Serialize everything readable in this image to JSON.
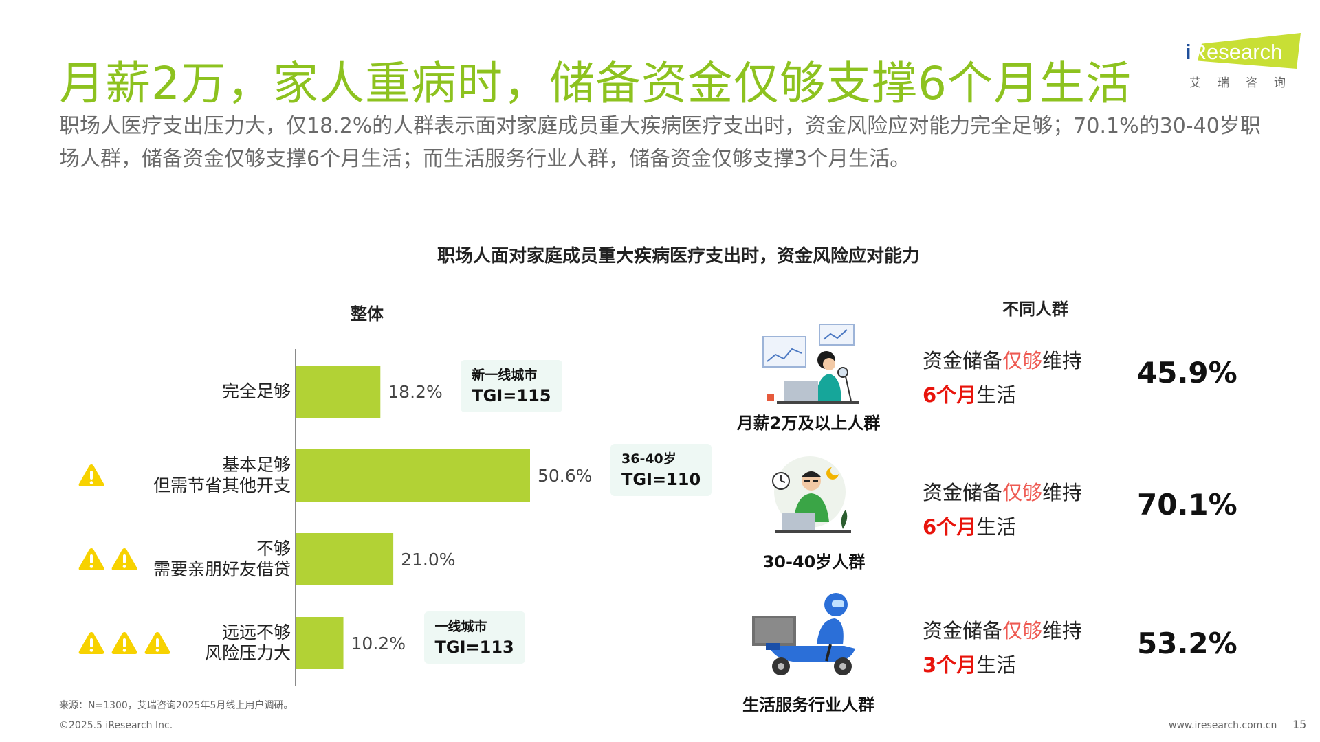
{
  "title": "月薪2万，家人重病时，储备资金仅够支撑6个月生活",
  "subtitle": "职场人医疗支出压力大，仅18.2%的人群表示面对家庭成员重大疾病医疗支出时，资金风险应对能力完全足够；70.1%的30-40岁职场人群，储备资金仅够支撑6个月生活；而生活服务行业人群，储备资金仅够支撑3个月生活。",
  "logo": {
    "text": "iResearch",
    "cn": "艾瑞咨询"
  },
  "colors": {
    "accent": "#8dc21f",
    "bar": "#b2d235",
    "highlight": "#ee5a52",
    "red": "#e8140c",
    "warning": "#f7d200",
    "tgi_bg": "#eef8f4"
  },
  "chart_data": {
    "type": "bar",
    "orientation": "horizontal",
    "title": "职场人面对家庭成员重大疾病医疗支出时，资金风险应对能力",
    "panel_title": "整体",
    "categories": [
      "完全足够",
      "基本足够\n但需节省其他开支",
      "不够\n需要亲朋好友借贷",
      "远远不够\n风险压力大"
    ],
    "category_lines": [
      [
        "完全足够"
      ],
      [
        "基本足够",
        "但需节省其他开支"
      ],
      [
        "不够",
        "需要亲朋好友借贷"
      ],
      [
        "远远不够",
        "风险压力大"
      ]
    ],
    "values": [
      18.2,
      50.6,
      21.0,
      10.2
    ],
    "value_labels": [
      "18.2%",
      "50.6%",
      "21.0%",
      "10.2%"
    ],
    "warning_counts": [
      0,
      1,
      2,
      3
    ],
    "xlim": [
      0,
      55
    ],
    "tgi_callouts": [
      {
        "category_index": 0,
        "group": "新一线城市",
        "tgi": "TGI=115"
      },
      {
        "category_index": 1,
        "group": "36-40岁",
        "tgi": "TGI=110"
      },
      {
        "category_index": 3,
        "group": "一线城市",
        "tgi": "TGI=113"
      }
    ]
  },
  "groups_header": "不同人群",
  "groups": [
    {
      "name": "月薪2万及以上人群",
      "icon": "office-worker-icon",
      "desc_prefix": "资金储备",
      "desc_hl": "仅够",
      "desc_suffix": "维持",
      "months": "6个月",
      "after": "生活",
      "percent": "45.9%"
    },
    {
      "name": "30-40岁人群",
      "icon": "busy-worker-icon",
      "desc_prefix": "资金储备",
      "desc_hl": "仅够",
      "desc_suffix": "维持",
      "months": "6个月",
      "after": "生活",
      "percent": "70.1%"
    },
    {
      "name": "生活服务行业人群",
      "icon": "delivery-rider-icon",
      "desc_prefix": "资金储备",
      "desc_hl": "仅够",
      "desc_suffix": "维持",
      "months": "3个月",
      "after": "生活",
      "percent": "53.2%"
    }
  ],
  "footer": {
    "source": "来源：N=1300，艾瑞咨询2025年5月线上用户调研。",
    "copyright": "©2025.5 iResearch Inc.",
    "website": "www.iresearch.com.cn",
    "page": "15"
  }
}
